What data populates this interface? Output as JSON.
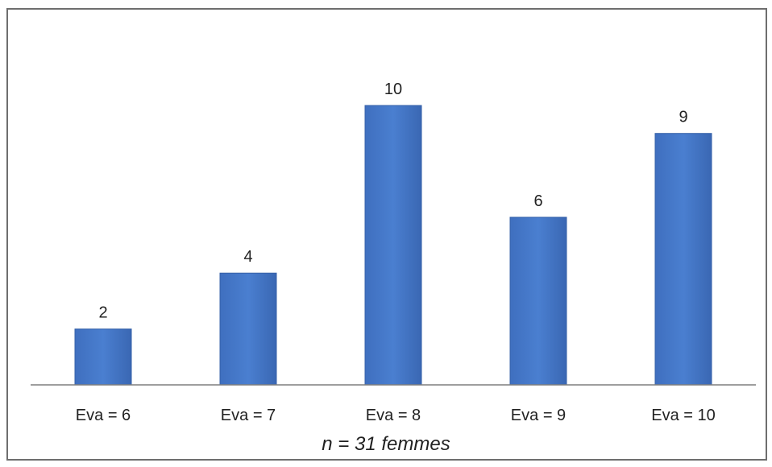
{
  "chart_data": {
    "type": "bar",
    "categories": [
      "Eva = 6",
      "Eva = 7",
      "Eva = 8",
      "Eva = 9",
      "Eva = 10"
    ],
    "values": [
      2,
      4,
      10,
      6,
      9
    ],
    "title": "",
    "xlabel": "n = 31 femmes",
    "ylabel": "",
    "ylim": [
      0,
      10
    ],
    "grid": false,
    "legend": "none",
    "data_labels": true,
    "bar_color": "#4472C4"
  }
}
